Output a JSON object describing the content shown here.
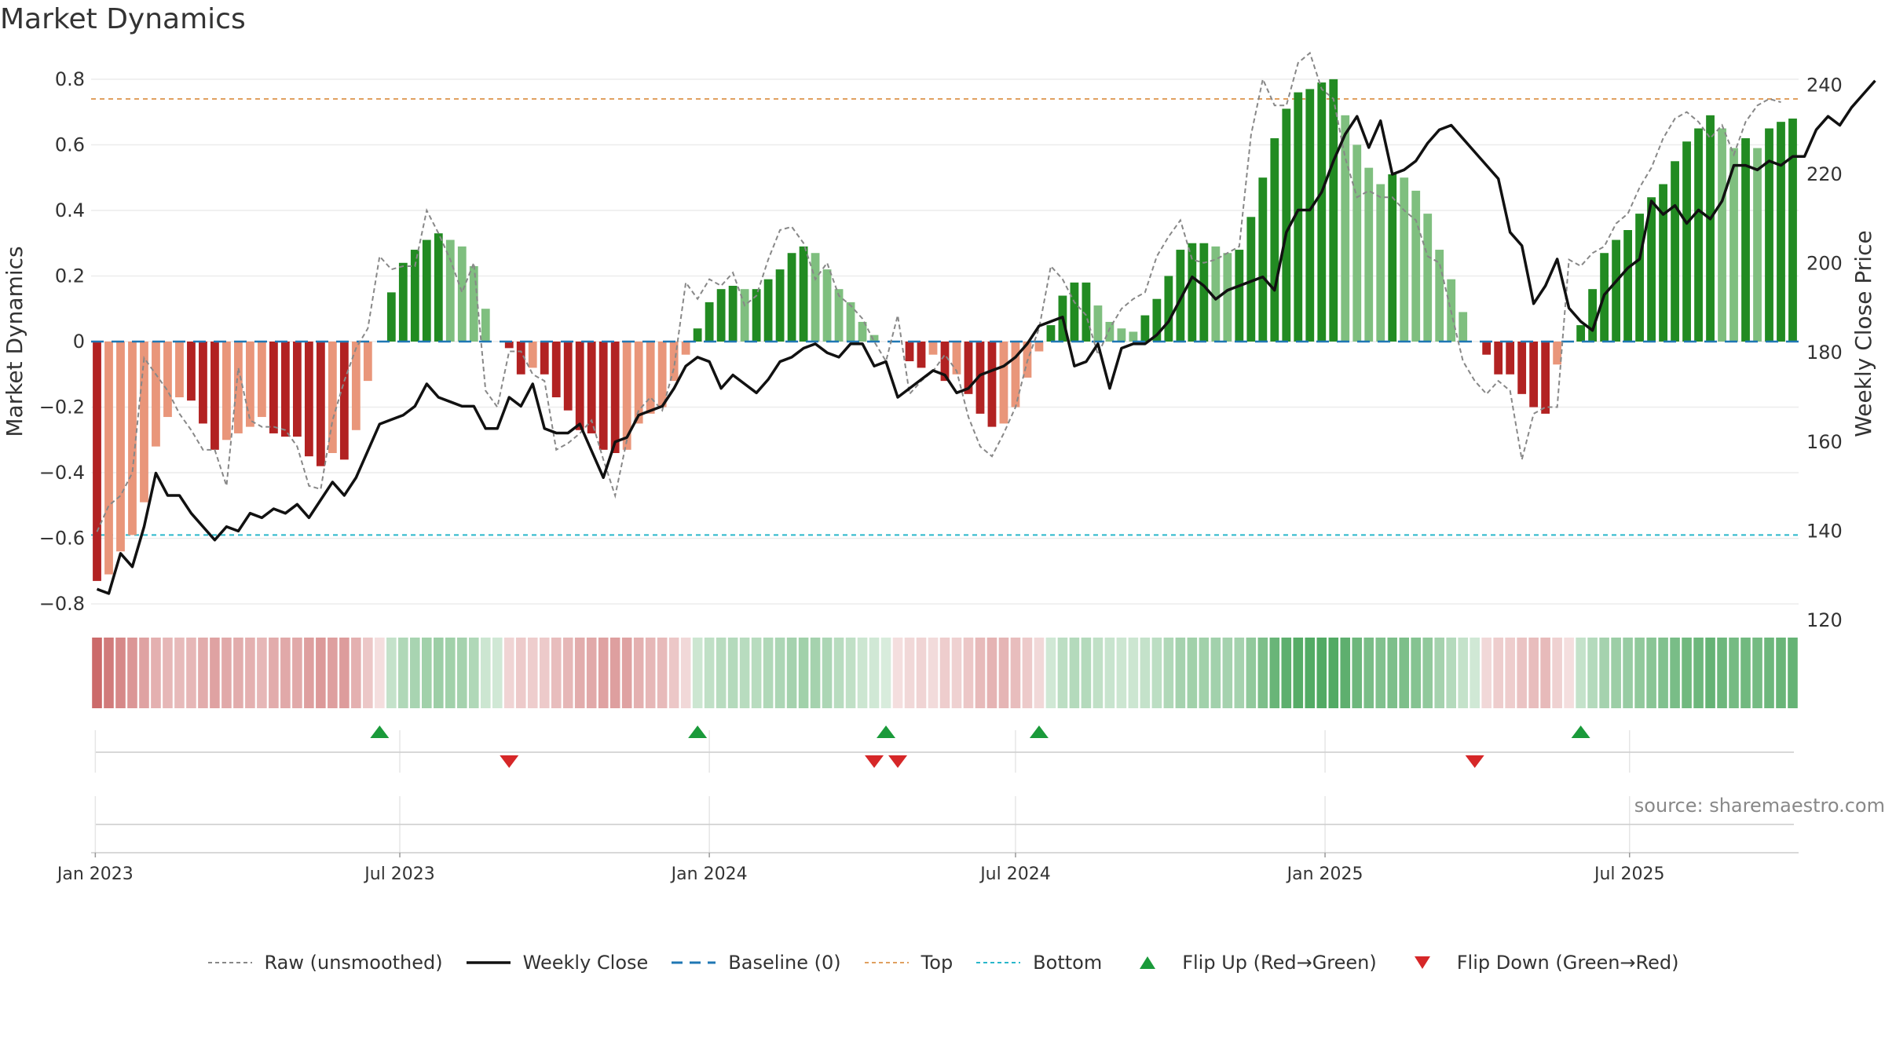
{
  "chart_data": {
    "type": "bar",
    "title": "Market Dynamics",
    "source": "source: sharemaestro.com",
    "xlabel": "",
    "ylabel": "Market Dynamics",
    "y2label": "Weekly Close Price",
    "ylim": [
      -0.85,
      0.85
    ],
    "y2lim": [
      120,
      245
    ],
    "y_ticks": [
      0.8,
      0.6,
      0.4,
      0.2,
      0,
      -0.2,
      -0.4,
      -0.6,
      -0.8
    ],
    "y_tick_labels": [
      "0.8",
      "0.6",
      "0.4",
      "0.2",
      "0",
      "−0.2",
      "−0.4",
      "−0.6",
      "−0.8"
    ],
    "y2_ticks": [
      240,
      220,
      200,
      180,
      160,
      140,
      120
    ],
    "y2_tick_labels": [
      "240",
      "220",
      "200",
      "180",
      "160",
      "140",
      "120"
    ],
    "start_date": "2023-01-02",
    "x_ticks": [
      {
        "date": "2023-01-01",
        "label": "Jan 2023"
      },
      {
        "date": "2023-07-01",
        "label": "Jul 2023"
      },
      {
        "date": "2024-01-01",
        "label": "Jan 2024"
      },
      {
        "date": "2024-07-01",
        "label": "Jul 2024"
      },
      {
        "date": "2025-01-01",
        "label": "Jan 2025"
      },
      {
        "date": "2025-07-01",
        "label": "Jul 2025"
      }
    ],
    "top_level": 0.74,
    "bottom_level": -0.59,
    "baseline": 0,
    "grid": true,
    "legend_position": "bottom-center",
    "smoothed": [
      -0.73,
      -0.71,
      -0.64,
      -0.59,
      -0.49,
      -0.32,
      -0.23,
      -0.17,
      -0.18,
      -0.25,
      -0.33,
      -0.3,
      -0.28,
      -0.26,
      -0.23,
      -0.28,
      -0.29,
      -0.29,
      -0.35,
      -0.38,
      -0.34,
      -0.36,
      -0.27,
      -0.12,
      0.0,
      0.15,
      0.24,
      0.28,
      0.31,
      0.33,
      0.31,
      0.29,
      0.23,
      0.1,
      0.0,
      -0.02,
      -0.1,
      -0.08,
      -0.1,
      -0.17,
      -0.21,
      -0.27,
      -0.28,
      -0.33,
      -0.34,
      -0.33,
      -0.25,
      -0.22,
      -0.2,
      -0.12,
      -0.04,
      0.04,
      0.12,
      0.16,
      0.17,
      0.16,
      0.16,
      0.19,
      0.22,
      0.27,
      0.29,
      0.27,
      0.22,
      0.16,
      0.12,
      0.06,
      0.02,
      0.0,
      0.0,
      -0.06,
      -0.08,
      -0.04,
      -0.12,
      -0.1,
      -0.16,
      -0.22,
      -0.26,
      -0.25,
      -0.2,
      -0.11,
      -0.03,
      0.05,
      0.14,
      0.18,
      0.18,
      0.11,
      0.06,
      0.04,
      0.03,
      0.08,
      0.13,
      0.2,
      0.28,
      0.3,
      0.3,
      0.29,
      0.27,
      0.28,
      0.38,
      0.5,
      0.62,
      0.71,
      0.76,
      0.77,
      0.79,
      0.8,
      0.69,
      0.6,
      0.53,
      0.48,
      0.51,
      0.5,
      0.46,
      0.39,
      0.28,
      0.19,
      0.09,
      0.0,
      -0.04,
      -0.1,
      -0.1,
      -0.16,
      -0.2,
      -0.22,
      -0.07,
      0.0,
      0.05,
      0.16,
      0.27,
      0.31,
      0.34,
      0.39,
      0.44,
      0.48,
      0.55,
      0.61,
      0.65,
      0.69,
      0.65,
      0.59,
      0.62,
      0.59,
      0.65,
      0.67,
      0.68
    ],
    "raw": [
      -0.58,
      -0.5,
      -0.47,
      -0.4,
      -0.05,
      -0.1,
      -0.15,
      -0.22,
      -0.27,
      -0.33,
      -0.33,
      -0.44,
      -0.08,
      -0.24,
      -0.26,
      -0.26,
      -0.27,
      -0.32,
      -0.44,
      -0.45,
      -0.24,
      -0.12,
      -0.02,
      0.04,
      0.26,
      0.22,
      0.23,
      0.23,
      0.4,
      0.33,
      0.25,
      0.15,
      0.24,
      -0.15,
      -0.2,
      -0.03,
      -0.03,
      -0.1,
      -0.12,
      -0.33,
      -0.31,
      -0.28,
      -0.24,
      -0.36,
      -0.47,
      -0.3,
      -0.21,
      -0.17,
      -0.21,
      -0.08,
      0.18,
      0.13,
      0.19,
      0.17,
      0.21,
      0.11,
      0.14,
      0.25,
      0.34,
      0.35,
      0.3,
      0.19,
      0.24,
      0.14,
      0.11,
      0.07,
      0.0,
      -0.06,
      0.08,
      -0.16,
      -0.12,
      -0.09,
      -0.04,
      -0.09,
      -0.23,
      -0.32,
      -0.35,
      -0.28,
      -0.2,
      -0.06,
      0.04,
      0.23,
      0.19,
      0.12,
      0.08,
      -0.04,
      0.04,
      0.1,
      0.13,
      0.15,
      0.26,
      0.32,
      0.37,
      0.25,
      0.24,
      0.25,
      0.27,
      0.29,
      0.63,
      0.8,
      0.72,
      0.72,
      0.85,
      0.88,
      0.77,
      0.74,
      0.56,
      0.44,
      0.46,
      0.44,
      0.44,
      0.4,
      0.37,
      0.26,
      0.24,
      0.09,
      -0.06,
      -0.12,
      -0.16,
      -0.12,
      -0.15,
      -0.36,
      -0.22,
      -0.2,
      -0.2,
      0.25,
      0.23,
      0.27,
      0.29,
      0.36,
      0.39,
      0.47,
      0.53,
      0.62,
      0.68,
      0.7,
      0.67,
      0.62,
      0.66,
      0.57,
      0.67,
      0.72,
      0.74,
      0.73
    ],
    "price": [
      127,
      126,
      135,
      132,
      141,
      153,
      148,
      148,
      144,
      141,
      138,
      141,
      140,
      144,
      143,
      145,
      144,
      146,
      143,
      147,
      151,
      148,
      152,
      158,
      164,
      165,
      166,
      168,
      173,
      170,
      169,
      168,
      168,
      163,
      163,
      170,
      168,
      173,
      163,
      162,
      162,
      164,
      158,
      152,
      160,
      161,
      166,
      167,
      168,
      172,
      177,
      179,
      178,
      172,
      175,
      173,
      171,
      174,
      178,
      179,
      181,
      182,
      180,
      179,
      182,
      182,
      177,
      178,
      170,
      172,
      174,
      176,
      175,
      171,
      172,
      175,
      176,
      177,
      179,
      182,
      186,
      187,
      188,
      177,
      178,
      182,
      172,
      181,
      182,
      182,
      184,
      187,
      192,
      197,
      195,
      192,
      194,
      195,
      196,
      197,
      194,
      207,
      212,
      212,
      216,
      223,
      229,
      233,
      226,
      232,
      220,
      221,
      223,
      227,
      230,
      231,
      228,
      225,
      222,
      219,
      207,
      204,
      191,
      195,
      201,
      190,
      187,
      185,
      193,
      196,
      199,
      201,
      214,
      211,
      213,
      209,
      212,
      210,
      214,
      222,
      222,
      221,
      223,
      222,
      224,
      224,
      230,
      233,
      231,
      235,
      238,
      241
    ],
    "state_intensity": [
      0.9,
      0.8,
      0.72,
      0.64,
      0.56,
      0.48,
      0.44,
      0.42,
      0.44,
      0.5,
      0.56,
      0.52,
      0.5,
      0.48,
      0.44,
      0.5,
      0.52,
      0.52,
      0.58,
      0.62,
      0.58,
      0.6,
      0.48,
      0.34,
      0.2,
      0.3,
      0.4,
      0.44,
      0.48,
      0.5,
      0.48,
      0.46,
      0.4,
      0.26,
      0.24,
      0.26,
      0.32,
      0.3,
      0.32,
      0.4,
      0.44,
      0.5,
      0.52,
      0.56,
      0.58,
      0.56,
      0.48,
      0.44,
      0.42,
      0.34,
      0.24,
      0.26,
      0.32,
      0.36,
      0.38,
      0.36,
      0.36,
      0.4,
      0.42,
      0.46,
      0.48,
      0.46,
      0.42,
      0.36,
      0.32,
      0.26,
      0.24,
      0.2,
      0.2,
      0.24,
      0.26,
      0.22,
      0.3,
      0.28,
      0.34,
      0.42,
      0.46,
      0.45,
      0.4,
      0.32,
      0.24,
      0.24,
      0.34,
      0.38,
      0.38,
      0.32,
      0.28,
      0.26,
      0.26,
      0.3,
      0.34,
      0.4,
      0.46,
      0.48,
      0.48,
      0.47,
      0.46,
      0.46,
      0.56,
      0.66,
      0.76,
      0.82,
      0.86,
      0.87,
      0.88,
      0.88,
      0.82,
      0.74,
      0.68,
      0.64,
      0.66,
      0.66,
      0.62,
      0.56,
      0.46,
      0.38,
      0.3,
      0.24,
      0.24,
      0.3,
      0.3,
      0.36,
      0.4,
      0.42,
      0.28,
      0.2,
      0.3,
      0.38,
      0.46,
      0.5,
      0.52,
      0.56,
      0.6,
      0.64,
      0.68,
      0.72,
      0.74,
      0.78,
      0.74,
      0.7,
      0.72,
      0.7,
      0.74,
      0.76,
      0.78
    ],
    "flips_up": [
      24,
      51,
      67,
      80,
      126
    ],
    "flips_down": [
      35,
      66,
      68,
      117
    ],
    "colors": {
      "pos_strong": "#228b22",
      "pos_weak": "#7fbf7f",
      "neg_strong": "#b22222",
      "neg_weak": "#e9967a",
      "strip_pos": "#3a9e4e",
      "strip_neg": "#c65a5a",
      "raw_line": "#888888",
      "price_line": "#111111",
      "baseline": "#1f77b4",
      "top": "#e0a060",
      "bottom": "#2ab7ca",
      "flip_up": "#1a9a3a",
      "flip_down": "#d62728"
    },
    "legend": [
      {
        "key": "raw",
        "label": "Raw (unsmoothed)"
      },
      {
        "key": "price",
        "label": "Weekly Close"
      },
      {
        "key": "baseline",
        "label": "Baseline (0)"
      },
      {
        "key": "top",
        "label": "Top"
      },
      {
        "key": "bottom",
        "label": "Bottom"
      },
      {
        "key": "flip_up",
        "label": "Flip Up (Red→Green)"
      },
      {
        "key": "flip_down",
        "label": "Flip Down (Green→Red)"
      }
    ]
  }
}
